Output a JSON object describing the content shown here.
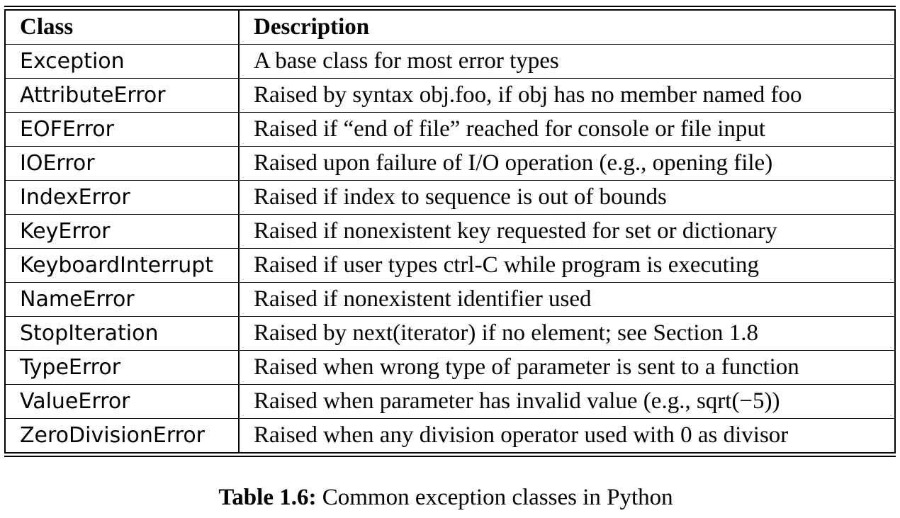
{
  "table": {
    "headers": [
      "Class",
      "Description"
    ],
    "rows": [
      [
        "Exception",
        "A base class for most error types"
      ],
      [
        "AttributeError",
        "Raised by syntax obj.foo, if obj has no member named foo"
      ],
      [
        "EOFError",
        "Raised if “end of file” reached for console or file input"
      ],
      [
        "IOError",
        "Raised upon failure of I/O operation (e.g., opening file)"
      ],
      [
        "IndexError",
        "Raised if index to sequence is out of bounds"
      ],
      [
        "KeyError",
        "Raised if nonexistent key requested for set or dictionary"
      ],
      [
        "KeyboardInterrupt",
        "Raised if user types ctrl-C while program is executing"
      ],
      [
        "NameError",
        "Raised if nonexistent identifier used"
      ],
      [
        "StopIteration",
        "Raised by next(iterator) if no element; see Section 1.8"
      ],
      [
        "TypeError",
        "Raised when wrong type of parameter is sent to a function"
      ],
      [
        "ValueError",
        "Raised when parameter has invalid value (e.g., sqrt(−5))"
      ],
      [
        "ZeroDivisionError",
        "Raised when any division operator used with 0 as divisor"
      ]
    ]
  },
  "caption": {
    "label": "Table 1.6:",
    "text": " Common exception classes in Python"
  }
}
